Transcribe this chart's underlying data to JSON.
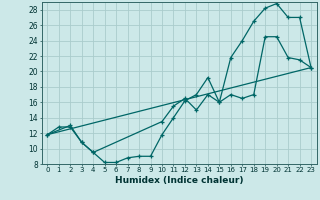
{
  "xlabel": "Humidex (Indice chaleur)",
  "bg_color": "#cce8e8",
  "grid_color": "#aacccc",
  "line_color": "#006666",
  "xlim": [
    -0.5,
    23.5
  ],
  "ylim": [
    8,
    29
  ],
  "xticks": [
    0,
    1,
    2,
    3,
    4,
    5,
    6,
    7,
    8,
    9,
    10,
    11,
    12,
    13,
    14,
    15,
    16,
    17,
    18,
    19,
    20,
    21,
    22,
    23
  ],
  "yticks": [
    8,
    10,
    12,
    14,
    16,
    18,
    20,
    22,
    24,
    26,
    28
  ],
  "curve1_x": [
    0,
    1,
    2,
    3,
    4,
    5,
    6,
    7,
    8,
    9,
    10,
    11,
    12,
    13,
    14,
    15,
    16,
    17,
    18,
    19,
    20,
    21,
    22,
    23
  ],
  "curve1_y": [
    11.8,
    12.8,
    12.8,
    10.8,
    9.5,
    8.2,
    8.2,
    8.8,
    9.0,
    9.0,
    11.8,
    14.0,
    16.2,
    17.0,
    19.2,
    16.0,
    21.8,
    24.0,
    26.5,
    28.2,
    28.8,
    27.0,
    27.0,
    20.5
  ],
  "curve2_x": [
    0,
    2,
    3,
    4,
    10,
    11,
    12,
    13,
    14,
    15,
    16,
    17,
    18,
    19,
    20,
    21,
    22,
    23
  ],
  "curve2_y": [
    11.8,
    13.0,
    10.8,
    9.5,
    13.5,
    15.5,
    16.5,
    15.0,
    17.0,
    16.0,
    17.0,
    16.5,
    17.0,
    24.5,
    24.5,
    21.8,
    21.5,
    20.5
  ],
  "curve3_x": [
    0,
    23
  ],
  "curve3_y": [
    11.8,
    20.5
  ]
}
